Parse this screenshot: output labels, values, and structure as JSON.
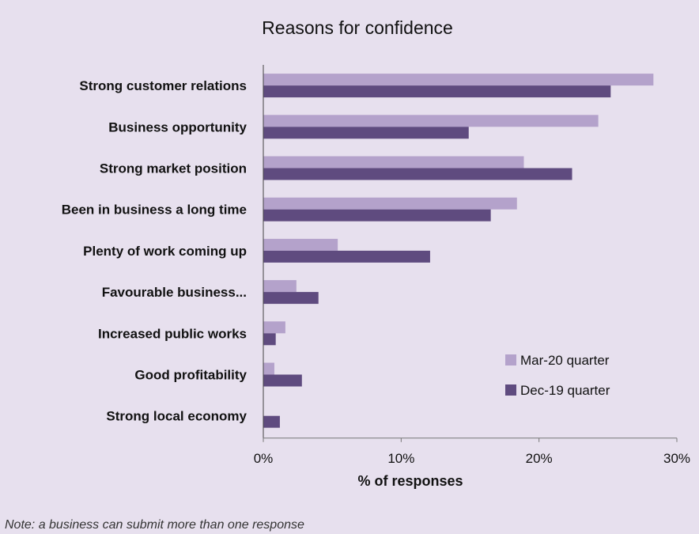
{
  "chart_data": {
    "type": "bar",
    "orientation": "horizontal",
    "title": "Reasons for confidence",
    "xlabel": "% of responses",
    "ylabel": "",
    "xlim": [
      0,
      30
    ],
    "x_ticks": [
      "0%",
      "10%",
      "20%",
      "30%"
    ],
    "x_tick_values": [
      0,
      10,
      20,
      30
    ],
    "grid": false,
    "legend_position": "bottom-right",
    "categories": [
      "Strong customer relations",
      "Business opportunity",
      "Strong market position",
      "Been in business a long time",
      "Plenty of work coming up",
      "Favourable business...",
      "Increased public works",
      "Good profitability",
      "Strong local economy"
    ],
    "series": [
      {
        "name": "Mar-20 quarter",
        "color": "#b4a2cb",
        "values": [
          28.3,
          24.3,
          18.9,
          18.4,
          5.4,
          2.4,
          1.6,
          0.8,
          0
        ]
      },
      {
        "name": "Dec-19 quarter",
        "color": "#5f4b7f",
        "values": [
          25.2,
          14.9,
          22.4,
          16.5,
          12.1,
          4.0,
          0.9,
          2.8,
          1.2
        ]
      }
    ]
  },
  "note": "Note: a business can submit more than one response"
}
